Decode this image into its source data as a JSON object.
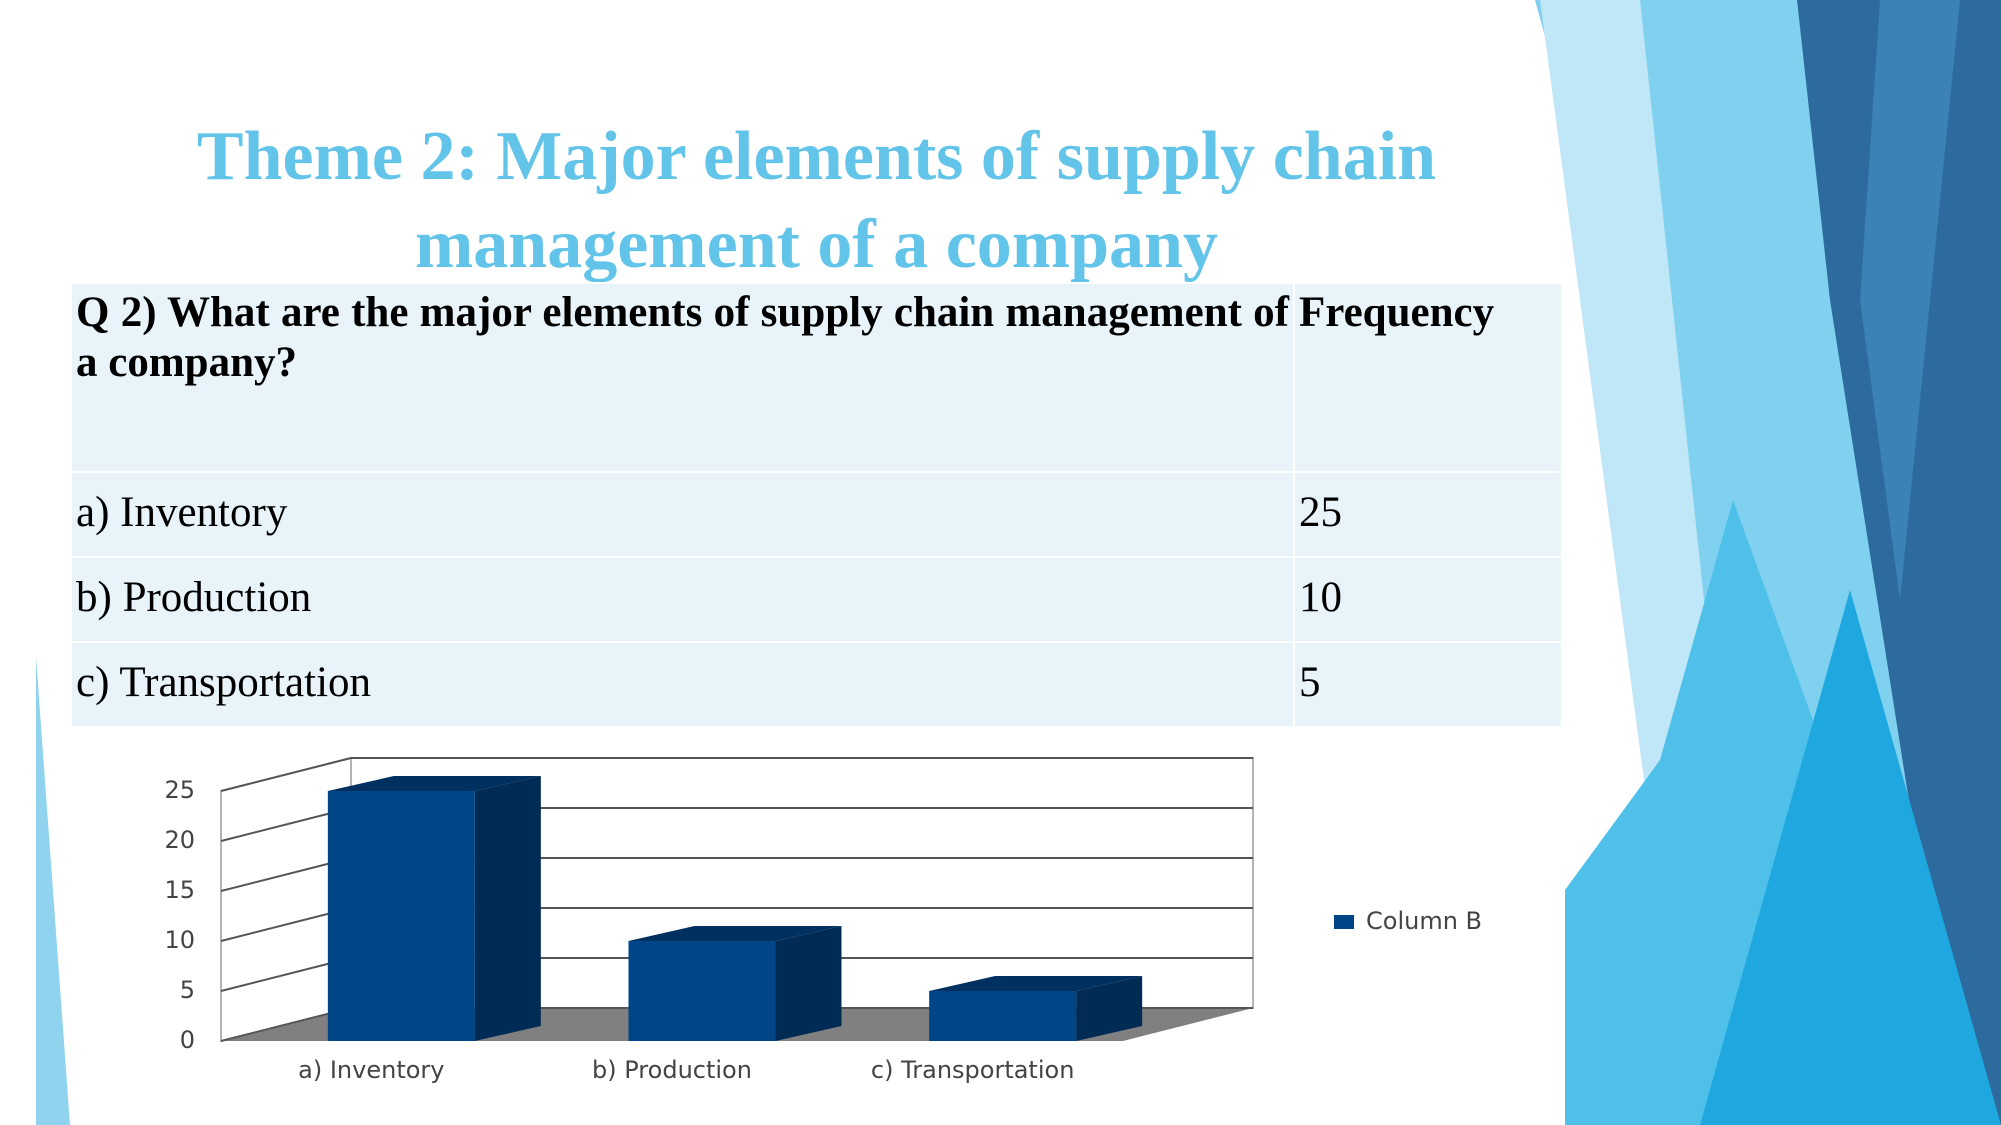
{
  "title": "Theme 2: Major elements of supply chain management of a company",
  "table": {
    "header": [
      "Q 2) What are the major elements of supply chain management of a company?",
      "Frequency"
    ],
    "rows": [
      [
        "a) Inventory",
        25
      ],
      [
        "b) Production",
        10
      ],
      [
        "c) Transportation",
        5
      ]
    ]
  },
  "chart_data": {
    "type": "bar",
    "categories": [
      "a) Inventory",
      "b) Production",
      "c) Transportation"
    ],
    "series": [
      {
        "name": "Column B",
        "color": "#004586",
        "values": [
          25,
          10,
          5
        ]
      }
    ],
    "ylim": [
      0,
      25
    ],
    "yticks": [
      0,
      5,
      10,
      15,
      20,
      25
    ],
    "grid": true,
    "legend": "right"
  }
}
